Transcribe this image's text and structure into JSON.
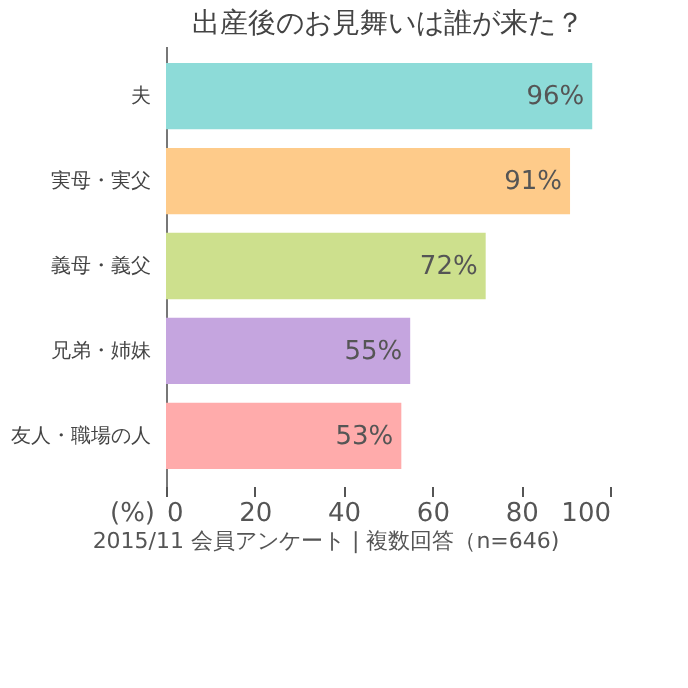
{
  "chart_data": {
    "type": "bar",
    "orientation": "horizontal",
    "title": "出産後のお見舞いは誰が来た？",
    "categories": [
      "夫",
      "実母・実父",
      "義母・義父",
      "兄弟・姉妹",
      "友人・職場の人"
    ],
    "values": [
      96,
      91,
      72,
      55,
      53
    ],
    "value_labels": [
      "96%",
      "91%",
      "72%",
      "55%",
      "53%"
    ],
    "colors": [
      "#8ddbd8",
      "#fecb8a",
      "#cde08d",
      "#c5a5df",
      "#ffabab"
    ],
    "xlabel": "(%)",
    "xlim": [
      0,
      100
    ],
    "xticks": [
      0,
      20,
      40,
      60,
      80,
      100
    ],
    "grid": false,
    "annotations": [
      "2015/11 会員アンケート | 複数回答（n=646)"
    ]
  }
}
